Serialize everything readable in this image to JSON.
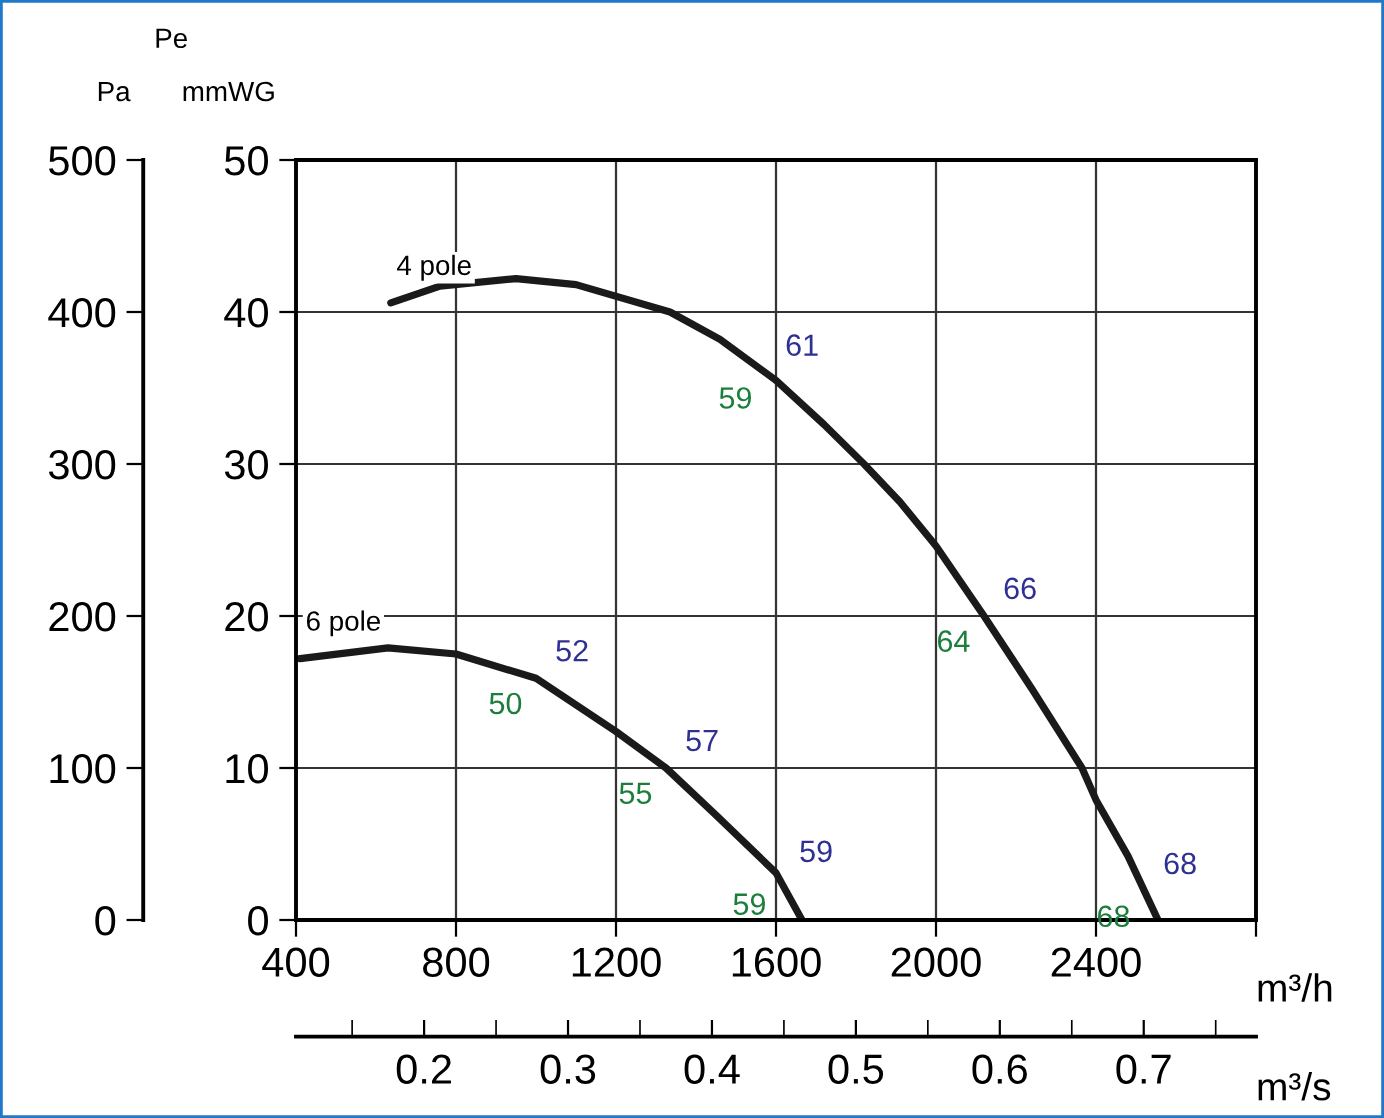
{
  "chart_data": {
    "type": "line",
    "xlabel": "m³/h",
    "ylabel": "mmWG",
    "y2label": "Pa",
    "x2label": "m³/s",
    "x": [
      637,
      760,
      950,
      1100,
      1335,
      1460,
      1600,
      1720,
      1820,
      1910,
      2000,
      2120,
      2240,
      2365,
      2400,
      2480,
      2555
    ],
    "series": [
      {
        "name": "4 pole",
        "color": "#1a1a1a",
        "values": [
          40.6,
          41.7,
          42.2,
          41.8,
          40,
          38.2,
          35.5,
          32.6,
          30,
          27.5,
          24.6,
          20,
          15.2,
          10,
          7.9,
          4.2,
          0
        ]
      },
      {
        "name": "6 pole",
        "color": "#1a1a1a",
        "x": [
          410,
          630,
          800,
          1000,
          1200,
          1325,
          1450,
          1600,
          1665
        ],
        "values": [
          17.2,
          17.9,
          17.5,
          15.9,
          12.4,
          10,
          6.9,
          3.1,
          0
        ]
      }
    ],
    "xlim": [
      400,
      2800
    ],
    "xticks": [
      400,
      800,
      1200,
      1600,
      2000,
      2400,
      {
        "value": 2800,
        "label": null
      }
    ],
    "ylim": [
      0,
      50
    ],
    "yticks": [
      0,
      10,
      20,
      30,
      40,
      50
    ],
    "y2lim": [
      0,
      500
    ],
    "y2ticks": [
      0,
      100,
      200,
      300,
      400,
      500
    ],
    "x2lim": [
      0.111,
      0.778
    ],
    "x2ticks": [
      0.2,
      0.3,
      0.4,
      0.5,
      0.6,
      0.7
    ],
    "grid": true,
    "legend": false,
    "marker": "none",
    "line_style": "solid",
    "annotations": [
      {
        "text": "61",
        "x": 1575,
        "y": 36.0
      },
      {
        "text": "59",
        "x": 1575,
        "y": 36.0
      },
      {
        "text": "66",
        "x": 2120,
        "y": 20
      },
      {
        "text": "64",
        "x": 2120,
        "y": 20
      },
      {
        "text": "68",
        "x": 2520,
        "y": 1.9
      },
      {
        "text": "68",
        "x": 2520,
        "y": 1.9
      },
      {
        "text": "52",
        "x": 1000,
        "y": 15.9
      },
      {
        "text": "50",
        "x": 1000,
        "y": 15.9
      },
      {
        "text": "57",
        "x": 1325,
        "y": 10
      },
      {
        "text": "55",
        "x": 1325,
        "y": 10
      },
      {
        "text": "59",
        "x": 1610,
        "y": 2.7
      },
      {
        "text": "59",
        "x": 1610,
        "y": 2.7
      },
      "Pe"
    ]
  }
}
